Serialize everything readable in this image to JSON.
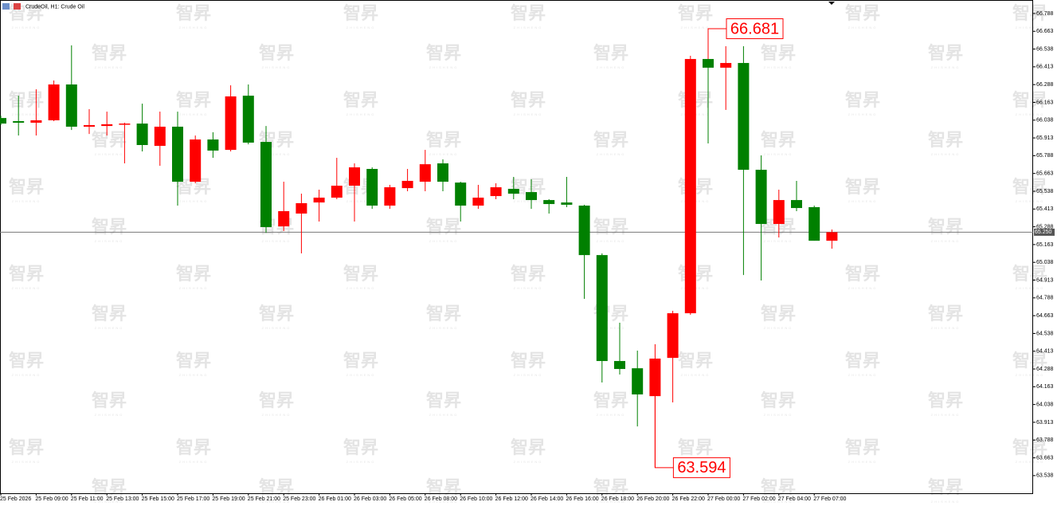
{
  "chart_data": {
    "type": "candlestick",
    "title": "CrudeOil, H1:  Crude Oil",
    "watermark": "智昇",
    "watermark_sub": "ZHISHENG",
    "categories": [
      "25 Feb 2026",
      null,
      "25 Feb 09:00",
      null,
      "25 Feb 11:00",
      null,
      "25 Feb 13:00",
      null,
      "25 Feb 15:00",
      null,
      "25 Feb 17:00",
      null,
      "25 Feb 19:00",
      null,
      "25 Feb 21:00",
      null,
      "25 Feb 23:00",
      null,
      "26 Feb 01:00",
      null,
      "26 Feb 03:00",
      null,
      "26 Feb 05:00",
      null,
      "26 Feb 08:00",
      null,
      "26 Feb 10:00",
      null,
      "26 Feb 12:00",
      null,
      "26 Feb 14:00",
      null,
      "26 Feb 16:00",
      null,
      "26 Feb 18:00",
      null,
      "26 Feb 20:00",
      null,
      "26 Feb 22:00",
      null,
      "27 Feb 00:00",
      null,
      "27 Feb 02:00",
      null,
      "27 Feb 04:00",
      null,
      "27 Feb 07:00",
      null
    ],
    "open": [
      66.053,
      66.031,
      66.02,
      66.037,
      66.289,
      65.992,
      65.997,
      66.009,
      66.014,
      65.857,
      65.992,
      65.605,
      65.902,
      65.829,
      66.21,
      65.885,
      65.291,
      65.381,
      65.459,
      65.493,
      65.577,
      65.695,
      65.437,
      65.56,
      65.605,
      65.734,
      65.599,
      65.437,
      65.504,
      65.555,
      65.532,
      65.476,
      65.459,
      65.437,
      65.089,
      64.344,
      64.293,
      64.097,
      64.366,
      64.68,
      66.468,
      66.407,
      66.44,
      65.689,
      65.308,
      65.476,
      65.426,
      65.19
    ],
    "high": [
      66.07,
      66.21,
      66.255,
      66.317,
      66.564,
      66.115,
      66.098,
      66.02,
      66.154,
      66.098,
      66.098,
      65.93,
      65.953,
      66.283,
      66.289,
      65.997,
      65.605,
      65.521,
      65.549,
      65.773,
      65.734,
      65.706,
      65.583,
      65.695,
      65.829,
      65.762,
      65.605,
      65.583,
      65.594,
      65.639,
      65.622,
      65.482,
      65.639,
      65.443,
      65.101,
      64.613,
      64.417,
      64.462,
      64.697,
      66.491,
      66.681,
      66.558,
      66.558,
      65.79,
      65.549,
      65.611,
      65.437,
      65.269
    ],
    "low": [
      66.003,
      65.93,
      65.93,
      66.031,
      65.969,
      65.941,
      65.93,
      65.734,
      65.818,
      65.717,
      65.437,
      65.594,
      65.773,
      65.818,
      65.868,
      65.246,
      65.258,
      65.101,
      65.325,
      65.482,
      65.325,
      65.414,
      65.414,
      65.538,
      65.538,
      65.538,
      65.325,
      65.414,
      65.482,
      65.482,
      65.414,
      65.381,
      65.426,
      64.781,
      64.193,
      64.249,
      63.884,
      63.594,
      64.053,
      64.669,
      65.874,
      66.11,
      64.949,
      64.91,
      65.213,
      65.398,
      65.19,
      65.134
    ],
    "close": [
      66.014,
      66.02,
      66.037,
      66.289,
      65.992,
      66.003,
      66.009,
      66.014,
      65.863,
      65.992,
      65.605,
      65.902,
      65.824,
      66.205,
      65.88,
      65.286,
      65.398,
      65.454,
      65.493,
      65.577,
      65.706,
      65.437,
      65.566,
      65.611,
      65.728,
      65.605,
      65.437,
      65.493,
      65.566,
      65.521,
      65.476,
      65.448,
      65.443,
      65.089,
      64.344,
      64.288,
      64.109,
      64.361,
      64.68,
      66.468,
      66.407,
      66.44,
      65.689,
      65.308,
      65.476,
      65.42,
      65.19,
      65.25
    ],
    "up_color": "#ff0000",
    "down_color": "#008000",
    "ylim": [
      63.414,
      66.883
    ],
    "yticks": [
      66.788,
      66.663,
      66.538,
      66.413,
      66.288,
      66.163,
      66.038,
      65.913,
      65.788,
      65.663,
      65.538,
      65.413,
      65.288,
      65.163,
      65.038,
      64.913,
      64.788,
      64.663,
      64.538,
      64.413,
      64.288,
      64.163,
      64.038,
      63.913,
      63.788,
      63.663,
      63.538
    ],
    "price_line": {
      "value": 65.25,
      "label": "65.250"
    },
    "high_marker_index": 40,
    "low_marker_index": 37
  }
}
